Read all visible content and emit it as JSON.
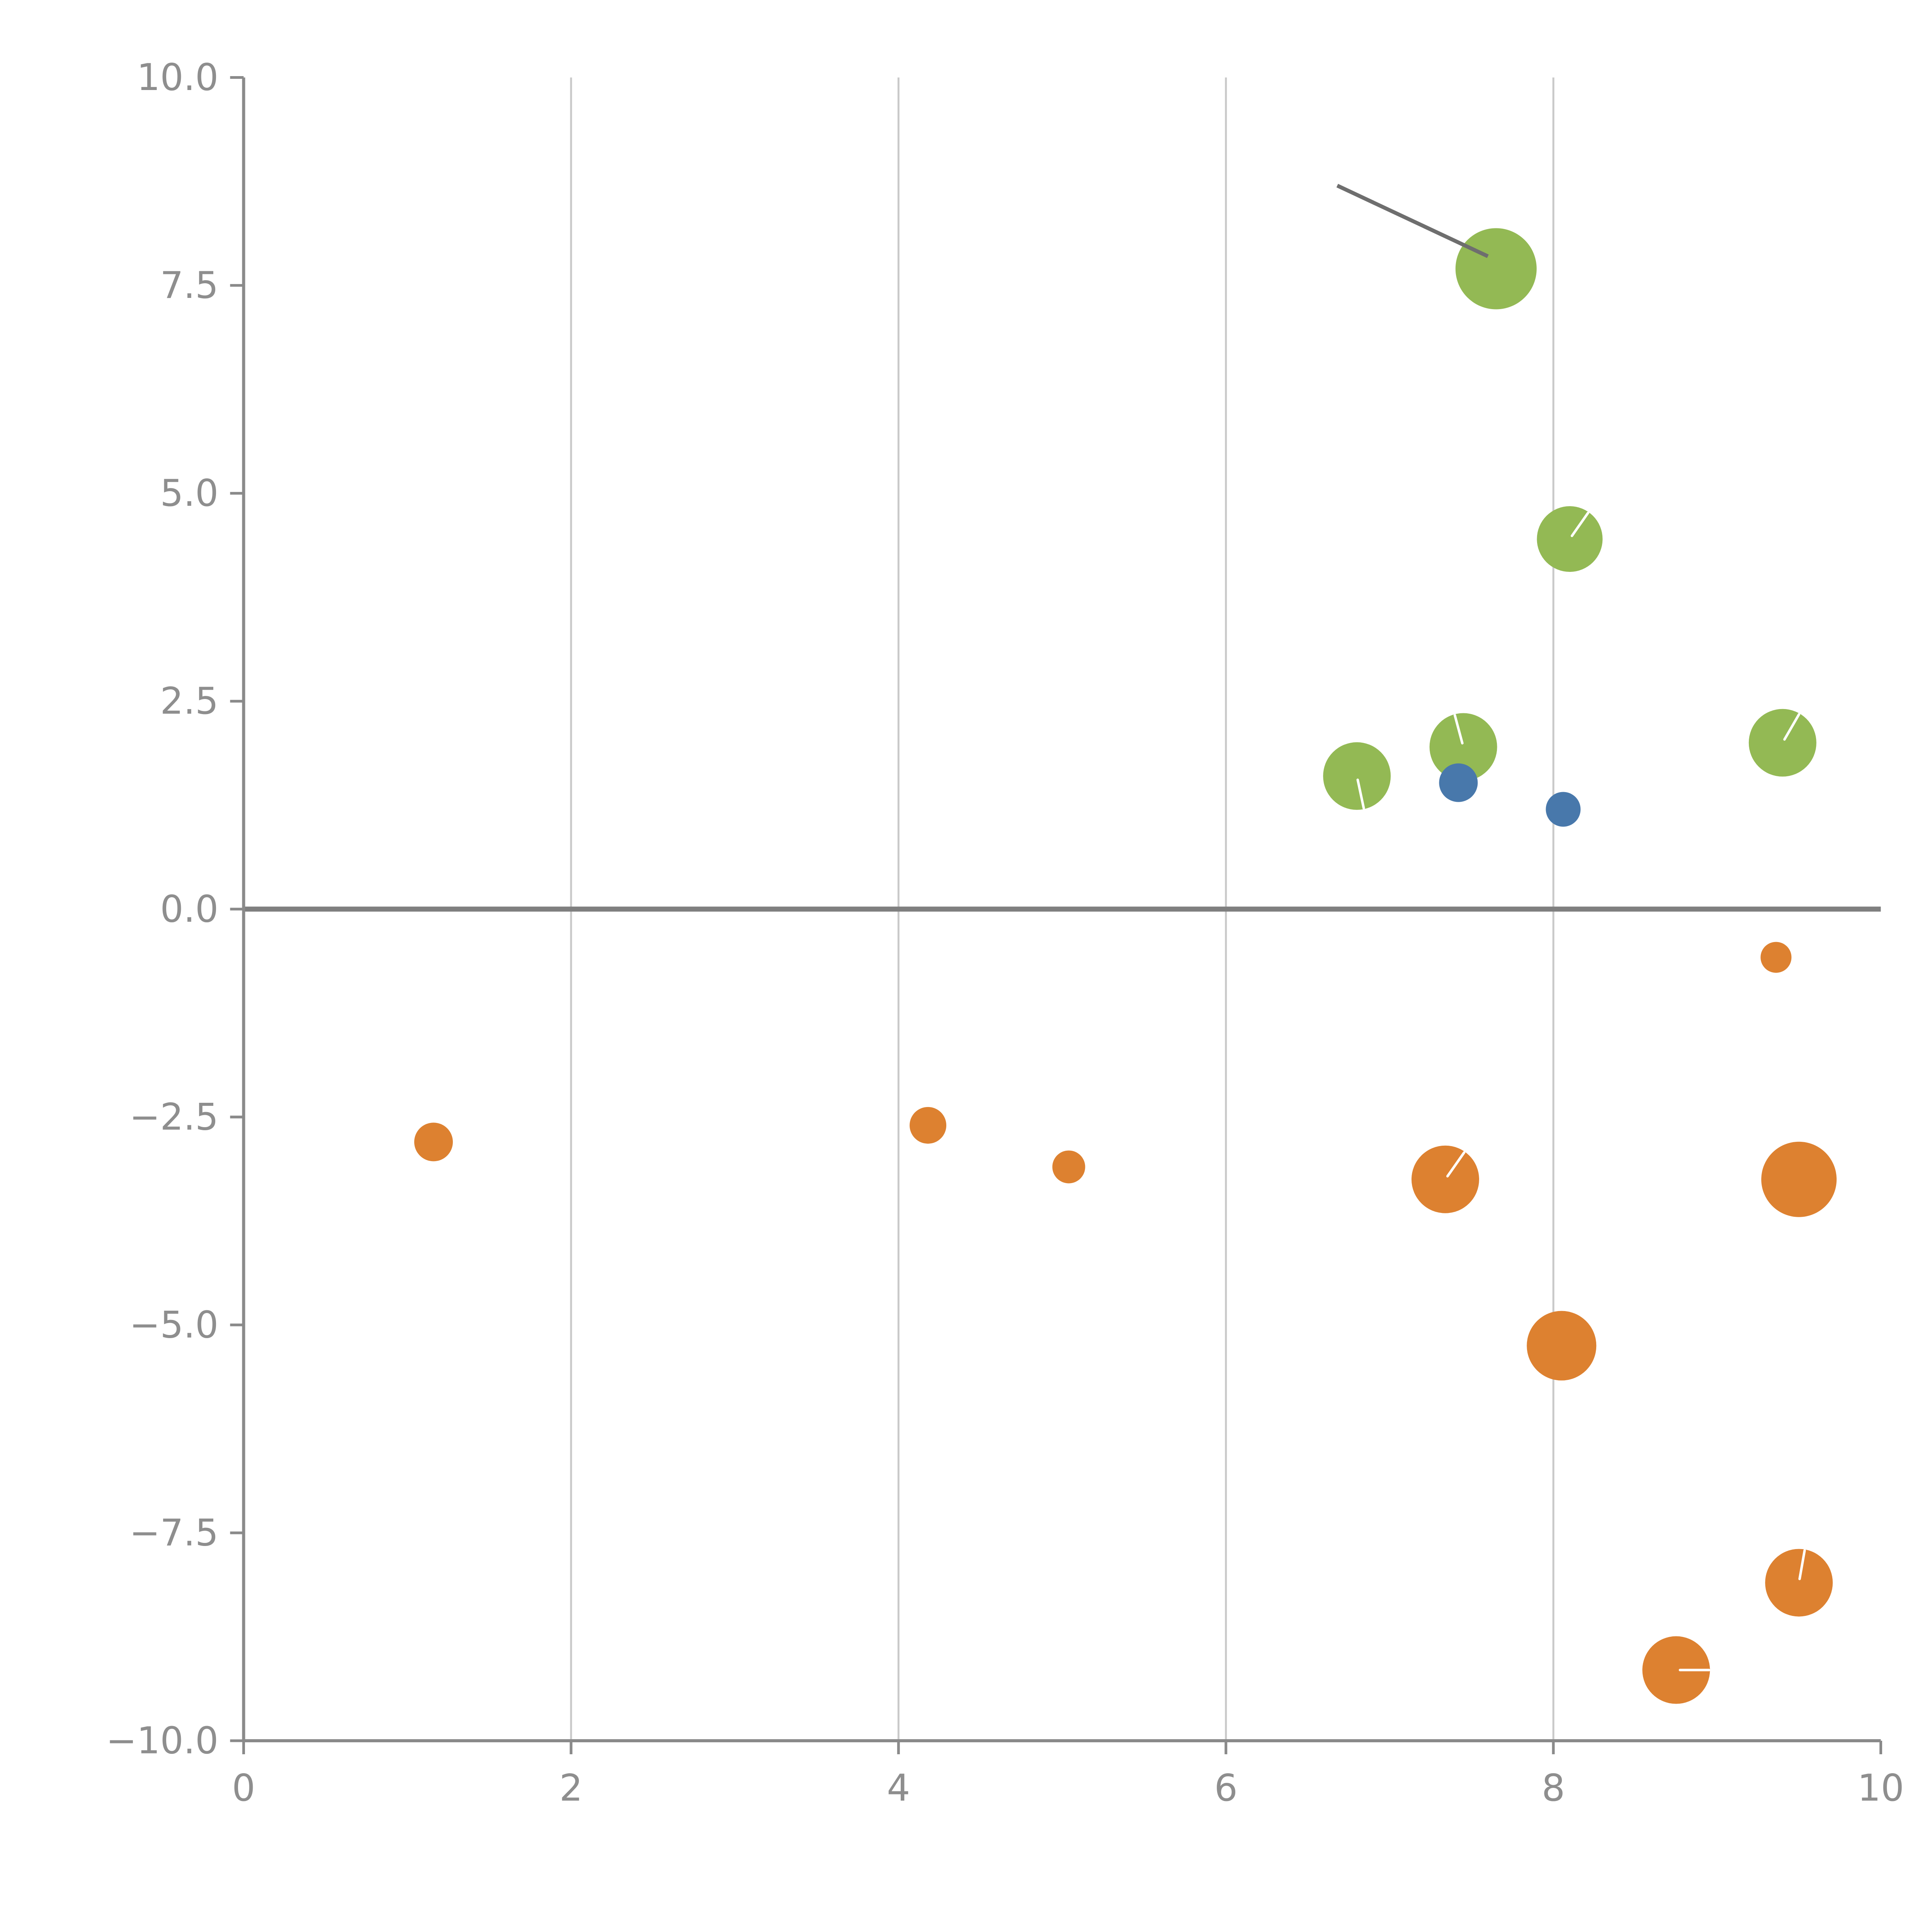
{
  "page": {
    "background": "#ffffff"
  },
  "chart_data": {
    "type": "scatter",
    "title": "",
    "xlabel": "",
    "ylabel": "",
    "xlim": [
      0,
      10
    ],
    "ylim": [
      -10,
      10
    ],
    "x_ticks": [
      0,
      2,
      4,
      6,
      8,
      10
    ],
    "x_tick_labels": [
      "0",
      "2",
      "4",
      "6",
      "8",
      "10"
    ],
    "y_ticks": [
      10.0,
      7.5,
      5.0,
      2.5,
      0.0,
      -2.5,
      -5.0,
      -7.5,
      -10.0
    ],
    "y_tick_labels": [
      "10.0",
      "7.5",
      "5.0",
      "2.5",
      "0.0",
      "−2.5",
      "−5.0",
      "−7.5",
      "−10.0"
    ],
    "grid": {
      "vertical_at": [
        2,
        4,
        6,
        8
      ],
      "horizontal": false,
      "color": "#c9c9c9"
    },
    "zero_line": {
      "y": 0,
      "color": "#7f7f7f"
    },
    "axis_color": "#8a8a8a",
    "tick_label_color": "#8e8e8e",
    "legend": "none",
    "annotation_line": {
      "x1": 6.68,
      "y1": 8.7,
      "x2": 7.6,
      "y2": 7.85,
      "color": "#6e6e6e"
    },
    "series": [
      {
        "name": "green",
        "color": "#93b954",
        "points": [
          {
            "x": 7.65,
            "y": 7.7,
            "r": 21
          },
          {
            "x": 8.1,
            "y": 4.45,
            "r": 17,
            "notch_deg": 55
          },
          {
            "x": 6.8,
            "y": 1.6,
            "r": 17.5,
            "notch_deg": -78
          },
          {
            "x": 7.45,
            "y": 1.95,
            "r": 17.5,
            "notch_deg": 105
          },
          {
            "x": 9.4,
            "y": 2.0,
            "r": 17.5,
            "notch_deg": 60
          }
        ]
      },
      {
        "name": "blue",
        "color": "#4878ab",
        "points": [
          {
            "x": 7.42,
            "y": 1.52,
            "r": 10
          },
          {
            "x": 8.06,
            "y": 1.2,
            "r": 9
          }
        ]
      },
      {
        "name": "orange",
        "color": "#dd8130",
        "points": [
          {
            "x": 1.16,
            "y": -2.8,
            "r": 10
          },
          {
            "x": 4.18,
            "y": -2.6,
            "r": 9.5
          },
          {
            "x": 5.04,
            "y": -3.1,
            "r": 8.5
          },
          {
            "x": 7.34,
            "y": -3.25,
            "r": 17.5,
            "notch_deg": 55
          },
          {
            "x": 9.5,
            "y": -3.25,
            "r": 19.5
          },
          {
            "x": 8.05,
            "y": -5.25,
            "r": 18
          },
          {
            "x": 9.5,
            "y": -8.1,
            "r": 17.5,
            "notch_deg": 80
          },
          {
            "x": 8.75,
            "y": -9.15,
            "r": 17.5,
            "notch_deg": 0
          },
          {
            "x": 9.36,
            "y": -0.58,
            "r": 8
          }
        ]
      }
    ]
  }
}
